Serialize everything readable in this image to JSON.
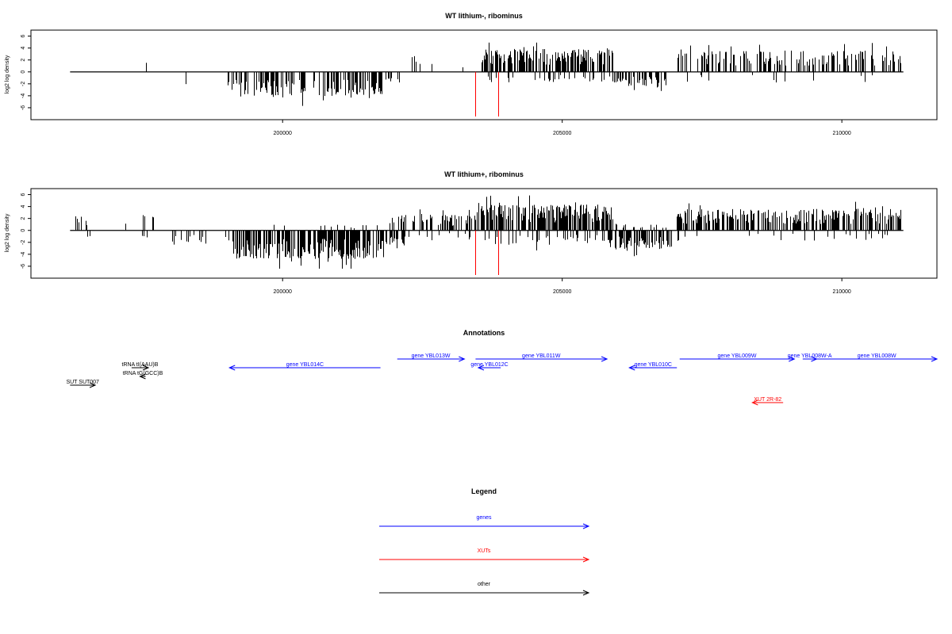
{
  "chart_data": [
    {
      "type": "bar",
      "title": "WT lithium-, ribominus",
      "ylabel": "log2 log density",
      "xlim": [
        195500,
        211700
      ],
      "ylim": [
        -8,
        7
      ],
      "yticks": [
        -6,
        -4,
        -2,
        0,
        2,
        4,
        6
      ],
      "xticks": [
        200000,
        205000,
        210000
      ],
      "baseline_range": [
        196200,
        211100
      ],
      "segments": [
        {
          "x0": 197550,
          "x1": 197570,
          "n": 1,
          "amp": 2.5,
          "dir": 1
        },
        {
          "x0": 198250,
          "x1": 198270,
          "n": 1,
          "amp": 2.2,
          "dir": -1
        },
        {
          "x0": 199000,
          "x1": 201800,
          "n": 140,
          "amp": 3.6,
          "dir": -1
        },
        {
          "x0": 201800,
          "x1": 202100,
          "n": 8,
          "amp": 1.5,
          "dir": -1
        },
        {
          "x0": 202300,
          "x1": 202700,
          "n": 5,
          "amp": 2.5,
          "dir": 1
        },
        {
          "x0": 203200,
          "x1": 203240,
          "n": 1,
          "amp": 0.8,
          "dir": 1
        },
        {
          "x0": 203550,
          "x1": 205900,
          "n": 160,
          "amp": 3.2,
          "dir": 1
        },
        {
          "x0": 203550,
          "x1": 205900,
          "n": 30,
          "amp": 1.5,
          "dir": -1
        },
        {
          "x0": 205900,
          "x1": 206900,
          "n": 50,
          "amp": 2.0,
          "dir": -1
        },
        {
          "x0": 207050,
          "x1": 211050,
          "n": 150,
          "amp": 3.0,
          "dir": 1
        },
        {
          "x0": 207050,
          "x1": 211050,
          "n": 12,
          "amp": 1.5,
          "dir": -1
        }
      ],
      "red_marks": [
        {
          "x": 203450,
          "y": -8
        },
        {
          "x": 203850,
          "y": -8
        }
      ]
    },
    {
      "type": "bar",
      "title": "WT lithium+, ribominus",
      "ylabel": "log2 log density",
      "xlim": [
        195500,
        211700
      ],
      "ylim": [
        -8,
        7
      ],
      "yticks": [
        -6,
        -4,
        -2,
        0,
        2,
        4,
        6
      ],
      "xticks": [
        200000,
        205000,
        210000
      ],
      "baseline_range": [
        196200,
        211100
      ],
      "segments": [
        {
          "x0": 196200,
          "x1": 196500,
          "n": 8,
          "amp": 2.0,
          "dir": 1
        },
        {
          "x0": 196500,
          "x1": 196600,
          "n": 2,
          "amp": 1.0,
          "dir": -1
        },
        {
          "x0": 197100,
          "x1": 197700,
          "n": 6,
          "amp": 2.5,
          "dir": 1
        },
        {
          "x0": 197300,
          "x1": 197600,
          "n": 3,
          "amp": 2.5,
          "dir": -1
        },
        {
          "x0": 198000,
          "x1": 199100,
          "n": 15,
          "amp": 2.0,
          "dir": -1
        },
        {
          "x0": 199100,
          "x1": 201800,
          "n": 220,
          "amp": 4.0,
          "dir": -1
        },
        {
          "x0": 199100,
          "x1": 201800,
          "n": 12,
          "amp": 0.8,
          "dir": 1
        },
        {
          "x0": 201800,
          "x1": 202200,
          "n": 20,
          "amp": 2.0,
          "dir": -1
        },
        {
          "x0": 201900,
          "x1": 203500,
          "n": 60,
          "amp": 2.2,
          "dir": 1
        },
        {
          "x0": 202100,
          "x1": 203400,
          "n": 12,
          "amp": 1.0,
          "dir": -1
        },
        {
          "x0": 203500,
          "x1": 205900,
          "n": 230,
          "amp": 3.6,
          "dir": 1
        },
        {
          "x0": 203500,
          "x1": 205900,
          "n": 40,
          "amp": 2.0,
          "dir": -1
        },
        {
          "x0": 205800,
          "x1": 206950,
          "n": 80,
          "amp": 2.6,
          "dir": -1
        },
        {
          "x0": 205900,
          "x1": 206900,
          "n": 15,
          "amp": 1.0,
          "dir": 1
        },
        {
          "x0": 207050,
          "x1": 211050,
          "n": 250,
          "amp": 3.0,
          "dir": 1
        },
        {
          "x0": 207050,
          "x1": 211050,
          "n": 25,
          "amp": 1.5,
          "dir": -1
        }
      ],
      "red_marks": [
        {
          "x": 203450,
          "y": -8
        },
        {
          "x": 203850,
          "y": -8
        }
      ]
    }
  ],
  "annotations": {
    "title": "Annotations",
    "features": [
      {
        "label": "SUT SUT007",
        "x0": 196200,
        "x1": 196650,
        "dir": 1,
        "color": "#000000",
        "row": 3
      },
      {
        "label": "tRNA tI(AAU)B",
        "x0": 197300,
        "x1": 197600,
        "dir": 1,
        "color": "#000000",
        "row": 1
      },
      {
        "label": "tRNA tG(GCC)B",
        "x0": 197450,
        "x1": 197550,
        "dir": -1,
        "color": "#000000",
        "row": 2
      },
      {
        "label": "gene YBL014C",
        "x0": 199050,
        "x1": 201750,
        "dir": -1,
        "color": "#0000ff",
        "row": 1
      },
      {
        "label": "gene YBL013W",
        "x0": 202050,
        "x1": 203250,
        "dir": 1,
        "color": "#0000ff",
        "row": 0
      },
      {
        "label": "gene YBL012C",
        "x0": 203500,
        "x1": 203900,
        "dir": -1,
        "color": "#0000ff",
        "row": 1
      },
      {
        "label": "gene YBL011W",
        "x0": 203450,
        "x1": 205800,
        "dir": 1,
        "color": "#0000ff",
        "row": 0
      },
      {
        "label": "gene YBL010C",
        "x0": 206200,
        "x1": 207050,
        "dir": -1,
        "color": "#0000ff",
        "row": 1
      },
      {
        "label": "gene YBL009W",
        "x0": 207100,
        "x1": 209150,
        "dir": 1,
        "color": "#0000ff",
        "row": 0
      },
      {
        "label": "gene YBL008W-A",
        "x0": 209300,
        "x1": 209550,
        "dir": 1,
        "color": "#0000ff",
        "row": 0
      },
      {
        "label": "gene YBL008W",
        "x0": 209550,
        "x1": 211700,
        "dir": 1,
        "color": "#0000ff",
        "row": 0
      },
      {
        "label": "XUT 2R-82",
        "x0": 208400,
        "x1": 208950,
        "dir": -1,
        "color": "#ff0000",
        "row": 5
      }
    ]
  },
  "legend": {
    "title": "Legend",
    "items": [
      {
        "label": "genes",
        "color": "#0000ff"
      },
      {
        "label": "XUTs",
        "color": "#ff0000"
      },
      {
        "label": "other",
        "color": "#000000"
      }
    ]
  }
}
